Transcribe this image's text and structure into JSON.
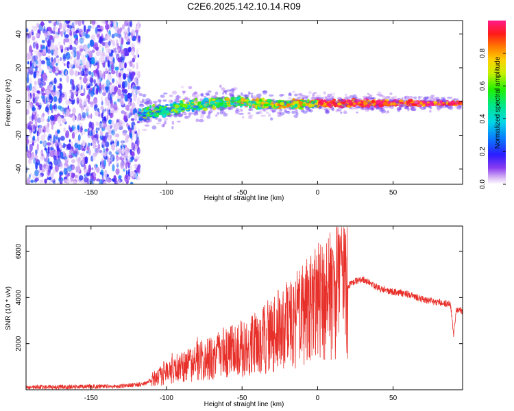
{
  "figure_title": "C2E6.2025.142.10.14.R09",
  "chart_data": [
    {
      "type": "heatmap",
      "xlabel": "Height of straight line (km)",
      "ylabel": "Frequency (Hz)",
      "xlim": [
        -193,
        96
      ],
      "ylim": [
        -49,
        48
      ],
      "x_ticks": [
        -150,
        -100,
        -50,
        0,
        50
      ],
      "y_ticks": [
        -40,
        -20,
        0,
        20,
        40
      ],
      "colorbar": {
        "label": "Normalized spectral amplitude",
        "range": [
          0,
          1
        ],
        "ticks": [
          "0.0",
          "0.2",
          "0.4",
          "0.6",
          "0.8"
        ],
        "colormap": "rainbow"
      },
      "regions": [
        {
          "x": [
            -193,
            -118
          ],
          "description_y": [
            -49,
            48
          ],
          "amplitude": [
            0.02,
            0.3
          ]
        },
        {
          "x": [
            -118,
            96
          ],
          "center_freq_hz": [
            -8,
            -3,
            0,
            -2,
            -1,
            -1
          ],
          "center_x": [
            -118,
            -90,
            -55,
            -30,
            0,
            96
          ],
          "amplitude": [
            0.2,
            1.0
          ]
        }
      ]
    },
    {
      "type": "line",
      "xlabel": "Height of straight line (km)",
      "ylabel": "SNR (10 * v/v)",
      "xlim": [
        -193,
        96
      ],
      "ylim": [
        0,
        7100
      ],
      "x_ticks": [
        -150,
        -100,
        -50,
        0,
        50
      ],
      "y_ticks": [
        2000,
        4000,
        6000
      ],
      "series": [
        {
          "color": "#e8302a",
          "x": [
            -193,
            -160,
            -130,
            -115,
            -105,
            -95,
            -85,
            -75,
            -65,
            -55,
            -45,
            -35,
            -25,
            -15,
            -5,
            5,
            15,
            25,
            30,
            40,
            50,
            60,
            70,
            80,
            88,
            90,
            92,
            96
          ],
          "y": [
            100,
            130,
            150,
            250,
            600,
            900,
            1100,
            1300,
            1500,
            1700,
            1900,
            2200,
            2600,
            3000,
            3500,
            3900,
            4300,
            4700,
            4800,
            4400,
            4250,
            4150,
            3900,
            3800,
            3700,
            2400,
            3500,
            3400
          ]
        }
      ]
    }
  ]
}
